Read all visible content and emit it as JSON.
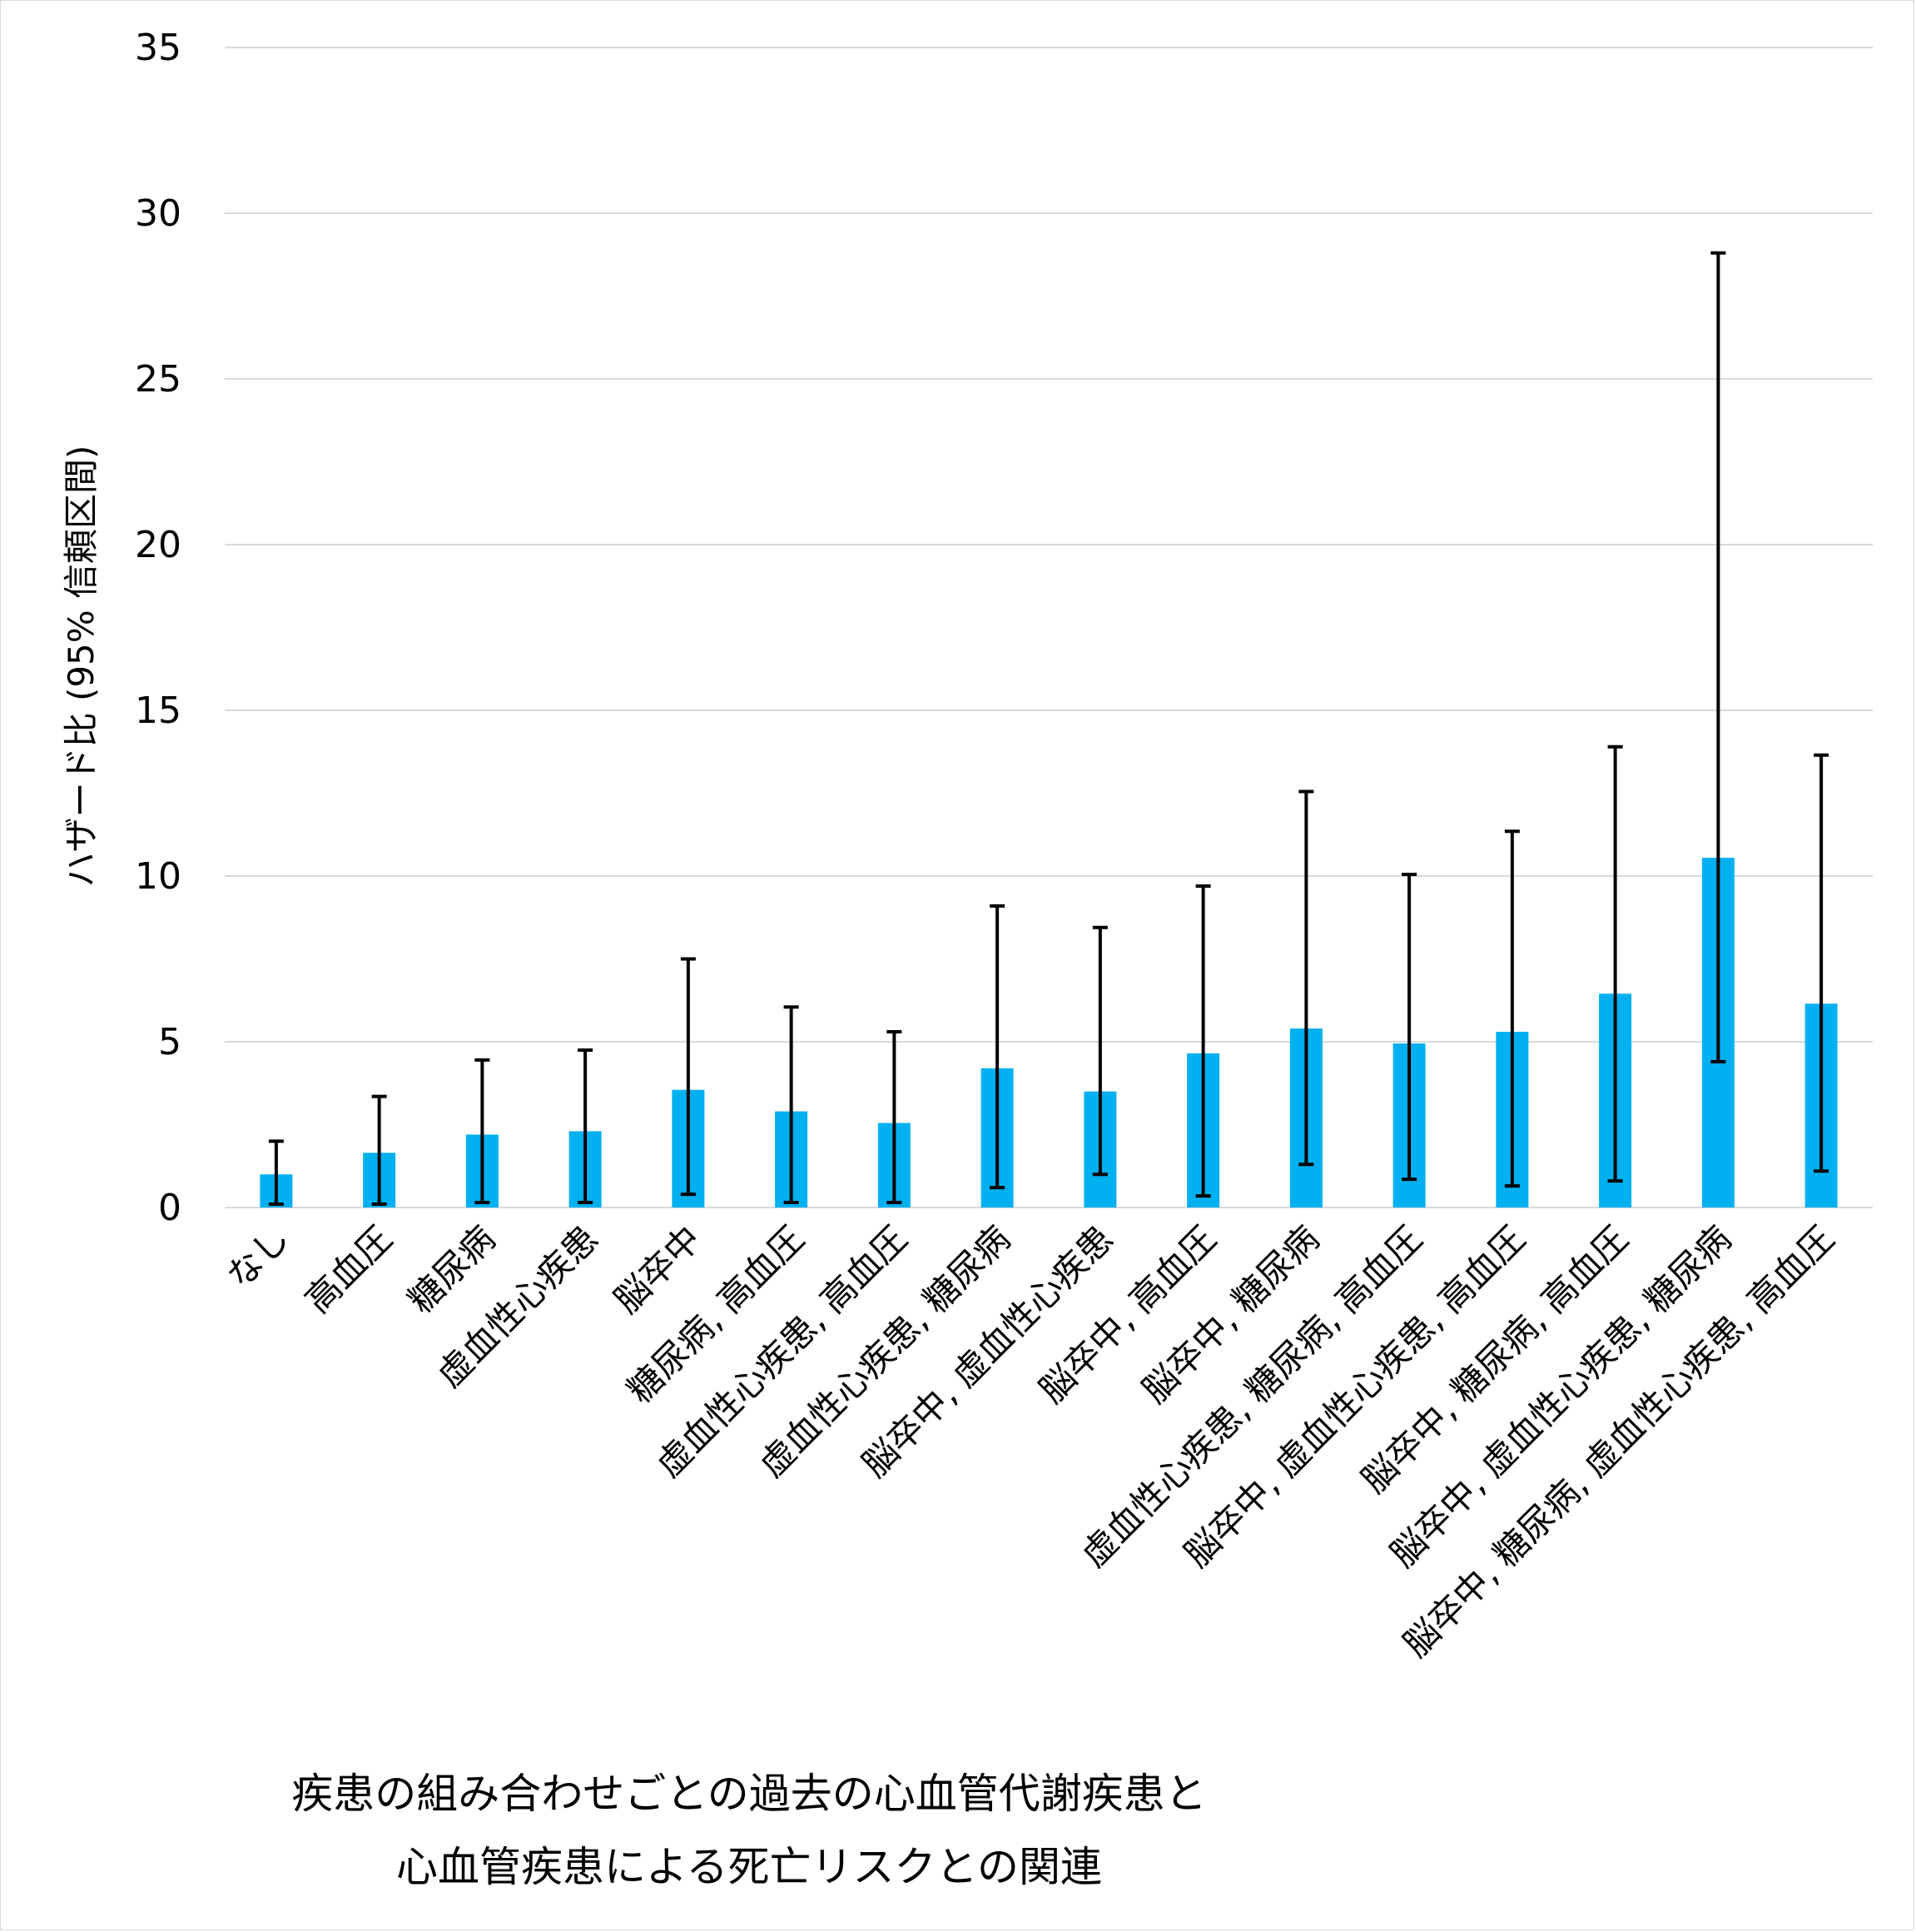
{
  "chart_data": {
    "type": "bar",
    "ylabel": "ハザード比 (95% 信頼区間)",
    "ylim": [
      0,
      35
    ],
    "yticks": [
      0,
      5,
      10,
      15,
      20,
      25,
      30,
      35
    ],
    "grid": true,
    "categories": [
      "なし",
      "高血圧",
      "糖尿病",
      "虚血性心疾患",
      "脳卒中",
      "糖尿病, 高血圧",
      "虚血性心疾患, 高血圧",
      "虚血性心疾患, 糖尿病",
      "脳卒中, 虚血性心疾患",
      "脳卒中, 高血圧",
      "脳卒中, 糖尿病",
      "虚血性心疾患, 糖尿病, 高血圧",
      "脳卒中, 虚血性心疾患, 高血圧",
      "脳卒中, 糖尿病, 高血圧",
      "脳卒中, 虚血性心疾患, 糖尿病",
      "脳卒中, 糖尿病, 虚血性心疾患, 高血圧"
    ],
    "values": [
      1.0,
      1.65,
      2.2,
      2.3,
      3.55,
      2.9,
      2.55,
      4.2,
      3.5,
      4.65,
      5.4,
      4.95,
      5.3,
      6.45,
      10.55,
      6.15
    ],
    "ci_lower": [
      0.1,
      0.1,
      0.15,
      0.15,
      0.4,
      0.15,
      0.15,
      0.6,
      1.0,
      0.35,
      1.3,
      0.85,
      0.65,
      0.8,
      4.4,
      1.1
    ],
    "ci_upper": [
      2.0,
      3.35,
      4.45,
      4.75,
      7.5,
      6.05,
      5.3,
      9.1,
      8.45,
      9.7,
      12.55,
      10.05,
      11.35,
      13.9,
      28.8,
      13.65
    ],
    "bar_color": "#00b0f0",
    "error_bar_color": "#000000",
    "grid_color": "#d9d9d9"
  },
  "caption": {
    "line1": "疾患の組み合わせごとの過去の心血管代謝疾患と",
    "line2": "心血管疾患による死亡リスクとの関連"
  }
}
